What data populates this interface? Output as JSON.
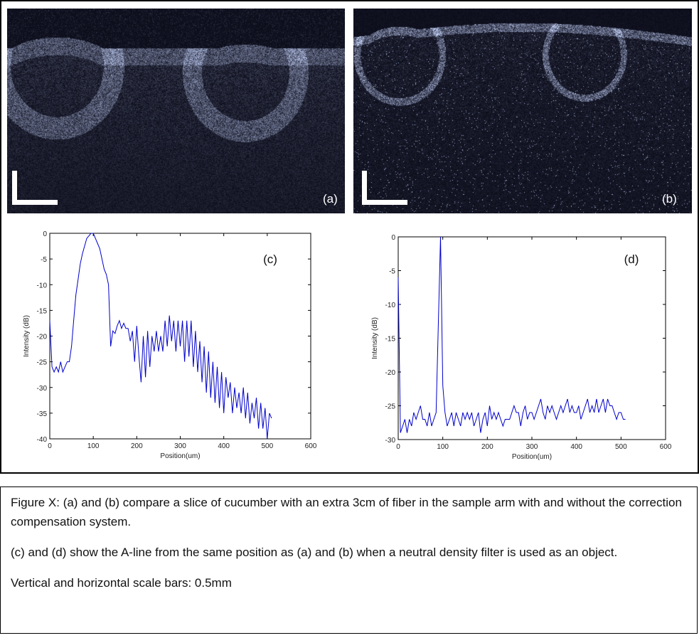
{
  "panels": {
    "a_label": "(a)",
    "b_label": "(b)"
  },
  "caption": {
    "p1": "Figure X: (a) and (b) compare a slice of cucumber with an extra 3cm of fiber in the sample arm with and without the correction compensation system.",
    "p2": "(c) and (d) show the A-line from the same position as (a) and (b) when a neutral density filter is used as an object.",
    "p3": "Vertical and horizontal scale bars: 0.5mm"
  },
  "colors": {
    "line": "#0000cc",
    "axis": "#000000"
  },
  "chart_data": [
    {
      "id": "c",
      "type": "line",
      "panel_label": "(c)",
      "xlabel": "Position(um)",
      "ylabel": "Intensity (dB)",
      "xlim": [
        0,
        600
      ],
      "ylim": [
        -40,
        0
      ],
      "xticks": [
        0,
        100,
        200,
        300,
        400,
        500,
        600
      ],
      "yticks": [
        0,
        -5,
        -10,
        -15,
        -20,
        -25,
        -30,
        -35,
        -40
      ],
      "x_step": 5,
      "values": [
        -17,
        -26,
        -27,
        -26,
        -27,
        -25,
        -27,
        -26,
        -25,
        -25,
        -22,
        -17,
        -12,
        -9,
        -6,
        -4,
        -2.5,
        -1,
        -0.5,
        0,
        0,
        -1,
        -2,
        -3,
        -5,
        -7,
        -8,
        -10,
        -22,
        -19,
        -19.5,
        -18,
        -17,
        -18.5,
        -17.5,
        -18.5,
        -18.5,
        -21,
        -19,
        -25,
        -18,
        -24,
        -29,
        -20,
        -28,
        -19,
        -26,
        -20,
        -23,
        -19,
        -23,
        -20,
        -23,
        -17,
        -22,
        -16,
        -21,
        -17,
        -23,
        -17,
        -22,
        -17,
        -25,
        -17,
        -24,
        -17,
        -26,
        -19,
        -27,
        -21,
        -29,
        -22,
        -31,
        -23,
        -32,
        -25,
        -33,
        -26,
        -34,
        -27,
        -35,
        -28,
        -32,
        -29,
        -35,
        -30,
        -34,
        -31,
        -35,
        -30,
        -36,
        -31,
        -37,
        -33,
        -36,
        -32,
        -38,
        -33,
        -38,
        -34,
        -40,
        -35,
        -36
      ]
    },
    {
      "id": "d",
      "type": "line",
      "panel_label": "(d)",
      "xlabel": "Position(um)",
      "ylabel": "Intensity (dB)",
      "xlim": [
        0,
        600
      ],
      "ylim": [
        -30,
        0
      ],
      "xticks": [
        0,
        100,
        200,
        300,
        400,
        500,
        600
      ],
      "yticks": [
        0,
        -5,
        -10,
        -15,
        -20,
        -25,
        -30
      ],
      "x_step": 5,
      "values": [
        -6,
        -29,
        -28,
        -27,
        -29,
        -27,
        -28,
        -26,
        -27,
        -26,
        -25,
        -27,
        -27,
        -28,
        -26,
        -28,
        -27,
        -26,
        -13,
        0,
        -22,
        -26,
        -28,
        -27,
        -26,
        -28,
        -26,
        -27,
        -28,
        -26,
        -27,
        -26,
        -27,
        -26,
        -28,
        -27,
        -26,
        -29,
        -27,
        -26,
        -28,
        -25,
        -27,
        -26,
        -27,
        -26,
        -27,
        -28,
        -27,
        -27,
        -27,
        -26,
        -25,
        -26,
        -26,
        -28,
        -26,
        -25,
        -27,
        -26,
        -26,
        -27,
        -26,
        -25,
        -24,
        -26,
        -27,
        -25,
        -26,
        -25,
        -26,
        -27,
        -26,
        -25,
        -26,
        -25,
        -24,
        -26,
        -25,
        -26,
        -26,
        -25,
        -27,
        -26,
        -25,
        -24,
        -26,
        -25,
        -26,
        -24,
        -26,
        -25,
        -24,
        -26,
        -24,
        -25,
        -25,
        -26,
        -27,
        -26,
        -26,
        -27,
        -27
      ]
    }
  ]
}
